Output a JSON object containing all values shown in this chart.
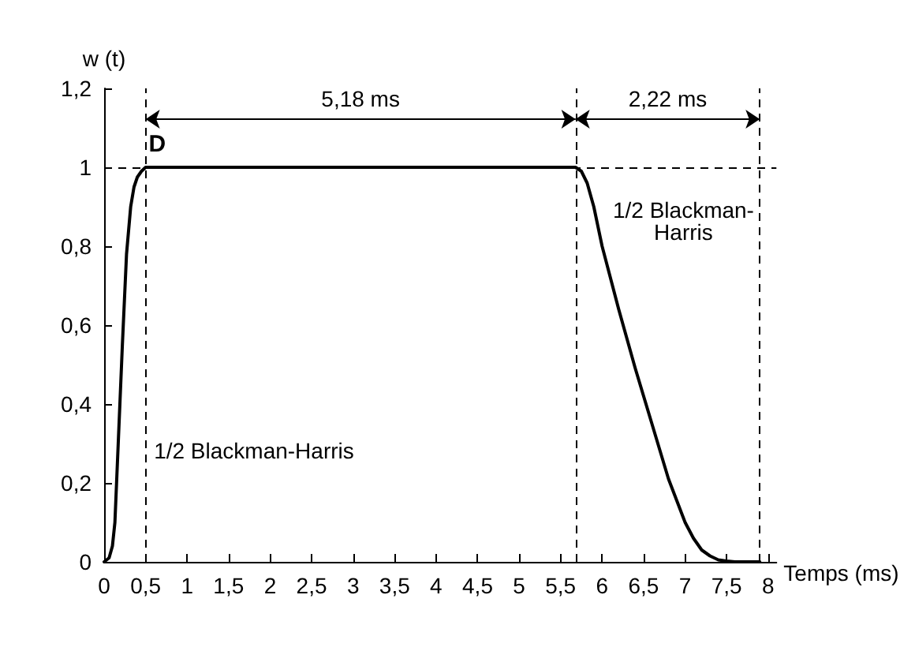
{
  "chart_data": {
    "type": "line",
    "xlabel": "Temps (ms)",
    "ylabel": "w (t)",
    "xlim": [
      0,
      8.1
    ],
    "ylim": [
      0,
      1.2
    ],
    "xticks": [
      0,
      {
        "value": 0.5,
        "label": "0,5"
      },
      1,
      {
        "value": 1.5,
        "label": "1,5"
      },
      2,
      {
        "value": 2.5,
        "label": "2,5"
      },
      3,
      {
        "value": 3.5,
        "label": "3,5"
      },
      4,
      {
        "value": 4.5,
        "label": "4,5"
      },
      5,
      {
        "value": 5.5,
        "label": "5,5"
      },
      6,
      {
        "value": 6.5,
        "label": "6,5"
      },
      7,
      {
        "value": 7.5,
        "label": "7,5"
      },
      8
    ],
    "yticks": [
      0,
      {
        "value": 0.2,
        "label": "0,2"
      },
      {
        "value": 0.4,
        "label": "0,4"
      },
      {
        "value": 0.6,
        "label": "0,6"
      },
      {
        "value": 0.8,
        "label": "0,8"
      },
      1,
      {
        "value": 1.2,
        "label": "1,2"
      }
    ],
    "grid": false,
    "marker": "none",
    "line_style": "solid",
    "x": [
      0,
      0.06,
      0.1,
      0.13,
      0.17,
      0.22,
      0.27,
      0.32,
      0.36,
      0.4,
      0.45,
      0.5,
      1,
      2,
      3,
      4,
      5,
      5.6,
      5.68,
      5.75,
      5.82,
      5.9,
      6,
      6.2,
      6.4,
      6.6,
      6.8,
      7,
      7.1,
      7.2,
      7.3,
      7.4,
      7.5,
      7.6,
      7.8,
      7.9
    ],
    "series": [
      {
        "color": "#000000",
        "values": [
          0,
          0.01,
          0.04,
          0.1,
          0.3,
          0.55,
          0.78,
          0.9,
          0.95,
          0.975,
          0.99,
          1,
          1,
          1,
          1,
          1,
          1,
          1,
          1,
          0.99,
          0.96,
          0.9,
          0.8,
          0.64,
          0.49,
          0.35,
          0.21,
          0.1,
          0.06,
          0.03,
          0.015,
          0.005,
          0.002,
          0,
          0,
          0
        ]
      }
    ],
    "ref_lines": [
      {
        "axis": "x",
        "value": 0.5,
        "line_style": "dashed",
        "color": "#000000"
      },
      {
        "axis": "x",
        "value": 5.68,
        "line_style": "dashed",
        "color": "#000000"
      },
      {
        "axis": "x",
        "value": 7.9,
        "line_style": "dashed",
        "color": "#000000"
      },
      {
        "axis": "y",
        "value": 1,
        "line_style": "dashed",
        "color": "#000000"
      }
    ],
    "annotations": [
      "5,18 ms",
      "2,22 ms",
      "D",
      "1/2 Blackman-Harris",
      "1/2 Blackman-\nHarris"
    ]
  }
}
